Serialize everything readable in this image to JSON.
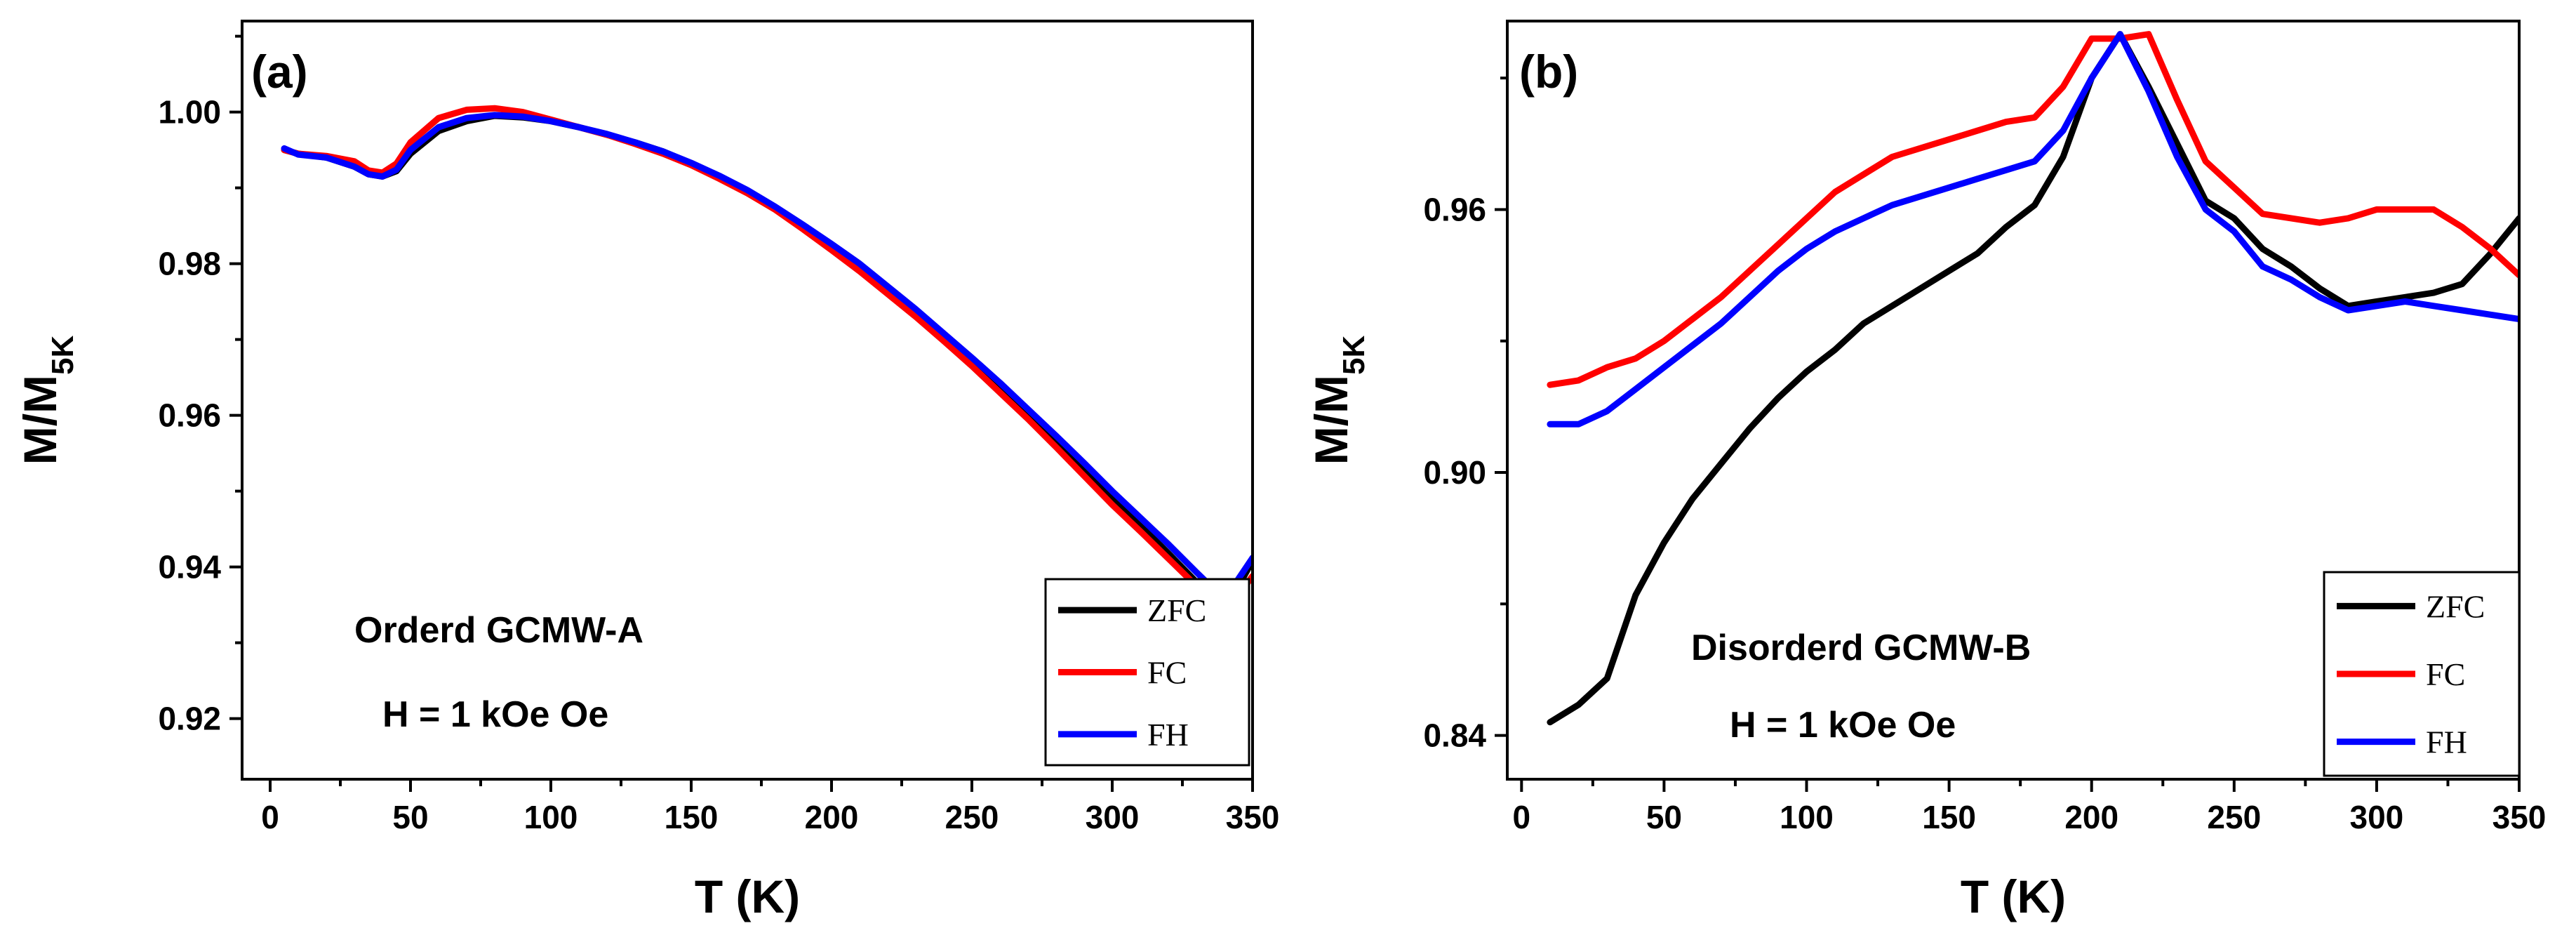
{
  "chart_data": [
    {
      "type": "line",
      "panel_label": "(a)",
      "xlabel": "T (K)",
      "ylabel_main": "M/M",
      "ylabel_sub": "5K",
      "xlim": [
        -10,
        350
      ],
      "ylim": [
        0.912,
        1.012
      ],
      "xticks": [
        0,
        50,
        100,
        150,
        200,
        250,
        300,
        350
      ],
      "xtick_labels": [
        "0",
        "50",
        "100",
        "150",
        "200",
        "250",
        "300",
        "350"
      ],
      "yticks": [
        0.92,
        0.94,
        0.96,
        0.98,
        1.0
      ],
      "ytick_labels": [
        "0.92",
        "0.94",
        "0.96",
        "0.98",
        "1.00"
      ],
      "annotations": [
        "Orderd GCMW-A",
        "H = 1 kOe Oe"
      ],
      "legend_position": "bottom-right",
      "series": [
        {
          "name": "ZFC",
          "color": "#000000",
          "x": [
            5,
            10,
            20,
            30,
            35,
            40,
            45,
            50,
            60,
            70,
            80,
            90,
            100,
            110,
            120,
            130,
            140,
            150,
            160,
            170,
            180,
            190,
            200,
            210,
            220,
            230,
            240,
            250,
            260,
            270,
            280,
            290,
            300,
            310,
            320,
            330,
            340,
            350
          ],
          "y": [
            0.995,
            0.9945,
            0.994,
            0.9928,
            0.9918,
            0.9915,
            0.9922,
            0.9945,
            0.9975,
            0.9988,
            0.9995,
            0.9993,
            0.9988,
            0.998,
            0.997,
            0.996,
            0.9948,
            0.9932,
            0.9915,
            0.9895,
            0.9873,
            0.9848,
            0.9822,
            0.9795,
            0.9765,
            0.9735,
            0.9703,
            0.967,
            0.9637,
            0.96,
            0.9565,
            0.9528,
            0.949,
            0.9455,
            0.9418,
            0.938,
            0.9342,
            0.9408
          ]
        },
        {
          "name": "FC",
          "color": "#ff0000",
          "x": [
            5,
            10,
            20,
            30,
            35,
            40,
            45,
            50,
            60,
            70,
            80,
            90,
            100,
            110,
            120,
            130,
            140,
            150,
            160,
            170,
            180,
            190,
            200,
            210,
            220,
            230,
            240,
            250,
            260,
            270,
            280,
            290,
            300,
            310,
            320,
            330,
            340,
            350
          ],
          "y": [
            0.995,
            0.9945,
            0.9942,
            0.9935,
            0.9923,
            0.992,
            0.9932,
            0.996,
            0.9992,
            1.0003,
            1.0005,
            1.0,
            0.999,
            0.998,
            0.997,
            0.9958,
            0.9945,
            0.993,
            0.9912,
            0.9893,
            0.9871,
            0.9845,
            0.9818,
            0.979,
            0.976,
            0.973,
            0.9698,
            0.9665,
            0.963,
            0.9595,
            0.9558,
            0.952,
            0.9482,
            0.9447,
            0.9411,
            0.9375,
            0.9338,
            0.9388
          ]
        },
        {
          "name": "FH",
          "color": "#0000ff",
          "x": [
            5,
            10,
            20,
            30,
            35,
            40,
            45,
            50,
            60,
            70,
            80,
            90,
            100,
            110,
            120,
            130,
            140,
            150,
            160,
            170,
            180,
            190,
            200,
            210,
            220,
            230,
            240,
            250,
            260,
            270,
            280,
            290,
            300,
            310,
            320,
            330,
            340,
            350
          ],
          "y": [
            0.9952,
            0.9944,
            0.994,
            0.9928,
            0.9918,
            0.9915,
            0.9924,
            0.995,
            0.998,
            0.9992,
            0.9996,
            0.9994,
            0.9988,
            0.998,
            0.9971,
            0.996,
            0.9948,
            0.9933,
            0.9916,
            0.9897,
            0.9875,
            0.9851,
            0.9826,
            0.98,
            0.977,
            0.974,
            0.9708,
            0.9676,
            0.9643,
            0.9608,
            0.9573,
            0.9537,
            0.95,
            0.9465,
            0.943,
            0.9393,
            0.9357,
            0.9412
          ]
        }
      ]
    },
    {
      "type": "line",
      "panel_label": "(b)",
      "xlabel": "T (K)",
      "ylabel_main": "M/M",
      "ylabel_sub": "5K",
      "xlim": [
        -5,
        350
      ],
      "ylim": [
        0.83,
        1.003
      ],
      "xticks": [
        0,
        50,
        100,
        150,
        200,
        250,
        300,
        350
      ],
      "xtick_labels": [
        "0",
        "50",
        "100",
        "150",
        "200",
        "250",
        "300",
        "350"
      ],
      "yticks": [
        0.84,
        0.9,
        0.96
      ],
      "ytick_labels": [
        "0.84",
        "0.90",
        "0.96"
      ],
      "annotations": [
        "Disorderd GCMW-B",
        "H = 1 kOe Oe"
      ],
      "legend_position": "bottom-right",
      "series": [
        {
          "name": "ZFC",
          "color": "#000000",
          "x": [
            10,
            20,
            30,
            40,
            50,
            60,
            70,
            80,
            90,
            100,
            110,
            120,
            130,
            140,
            150,
            160,
            170,
            180,
            190,
            200,
            210,
            220,
            230,
            240,
            250,
            260,
            270,
            280,
            290,
            300,
            310,
            320,
            330,
            340,
            350
          ],
          "y": [
            0.843,
            0.847,
            0.853,
            0.872,
            0.884,
            0.894,
            0.902,
            0.91,
            0.917,
            0.923,
            0.928,
            0.934,
            0.938,
            0.942,
            0.946,
            0.95,
            0.956,
            0.961,
            0.972,
            0.99,
            1.0,
            0.988,
            0.975,
            0.962,
            0.958,
            0.951,
            0.947,
            0.942,
            0.938,
            0.939,
            0.94,
            0.941,
            0.943,
            0.95,
            0.958
          ]
        },
        {
          "name": "FC",
          "color": "#ff0000",
          "x": [
            10,
            20,
            30,
            40,
            50,
            60,
            70,
            80,
            90,
            100,
            110,
            120,
            130,
            140,
            150,
            160,
            170,
            180,
            190,
            200,
            210,
            220,
            230,
            240,
            250,
            260,
            270,
            280,
            290,
            300,
            310,
            320,
            330,
            340,
            350
          ],
          "y": [
            0.92,
            0.921,
            0.924,
            0.926,
            0.93,
            0.935,
            0.94,
            0.946,
            0.952,
            0.958,
            0.964,
            0.968,
            0.972,
            0.974,
            0.976,
            0.978,
            0.98,
            0.981,
            0.988,
            0.999,
            0.999,
            1.0,
            0.985,
            0.971,
            0.965,
            0.959,
            0.958,
            0.957,
            0.958,
            0.96,
            0.96,
            0.96,
            0.956,
            0.951,
            0.945
          ]
        },
        {
          "name": "FH",
          "color": "#0000ff",
          "x": [
            10,
            20,
            30,
            40,
            50,
            60,
            70,
            80,
            90,
            100,
            110,
            120,
            130,
            140,
            150,
            160,
            170,
            180,
            190,
            200,
            210,
            220,
            230,
            240,
            250,
            260,
            270,
            280,
            290,
            300,
            310,
            320,
            330,
            340,
            350
          ],
          "y": [
            0.911,
            0.911,
            0.914,
            0.919,
            0.924,
            0.929,
            0.934,
            0.94,
            0.946,
            0.951,
            0.955,
            0.958,
            0.961,
            0.963,
            0.965,
            0.967,
            0.969,
            0.971,
            0.978,
            0.99,
            1.0,
            0.987,
            0.972,
            0.96,
            0.955,
            0.947,
            0.944,
            0.94,
            0.937,
            0.938,
            0.939,
            0.938,
            0.937,
            0.936,
            0.935
          ]
        }
      ]
    }
  ]
}
